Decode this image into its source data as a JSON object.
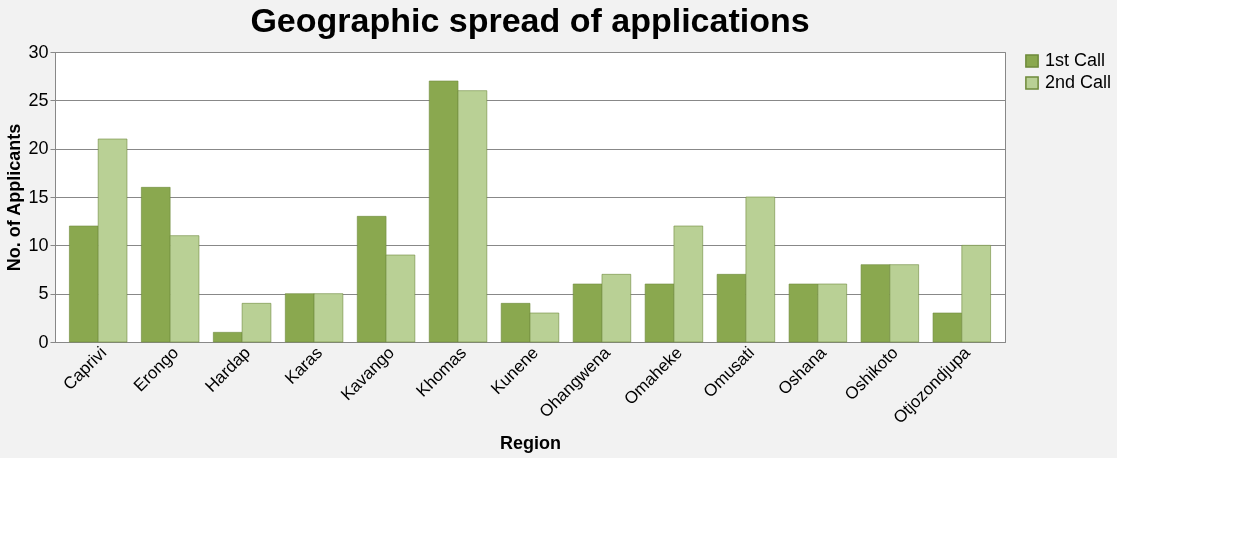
{
  "chart_data": {
    "type": "bar",
    "title": "Geographic spread of applications",
    "xlabel": "Region",
    "ylabel": "No. of Applicants",
    "categories": [
      "Caprivi",
      "Erongo",
      "Hardap",
      "Karas",
      "Kavango",
      "Khomas",
      "Kunene",
      "Ohangwena",
      "Omaheke",
      "Omusati",
      "Oshana",
      "Oshikoto",
      "Otjozondjupa"
    ],
    "series": [
      {
        "name": "1st Call",
        "color": "#8aa84f",
        "values": [
          12,
          16,
          1,
          5,
          13,
          27,
          4,
          6,
          6,
          7,
          6,
          8,
          3
        ]
      },
      {
        "name": "2nd Call",
        "color": "#b9d095",
        "values": [
          21,
          11,
          4,
          5,
          9,
          26,
          3,
          7,
          12,
          15,
          6,
          8,
          10
        ]
      }
    ],
    "ylim": [
      0,
      30
    ],
    "yticks": [
      0,
      5,
      10,
      15,
      20,
      25,
      30
    ],
    "grid": "y",
    "legend": "right"
  }
}
